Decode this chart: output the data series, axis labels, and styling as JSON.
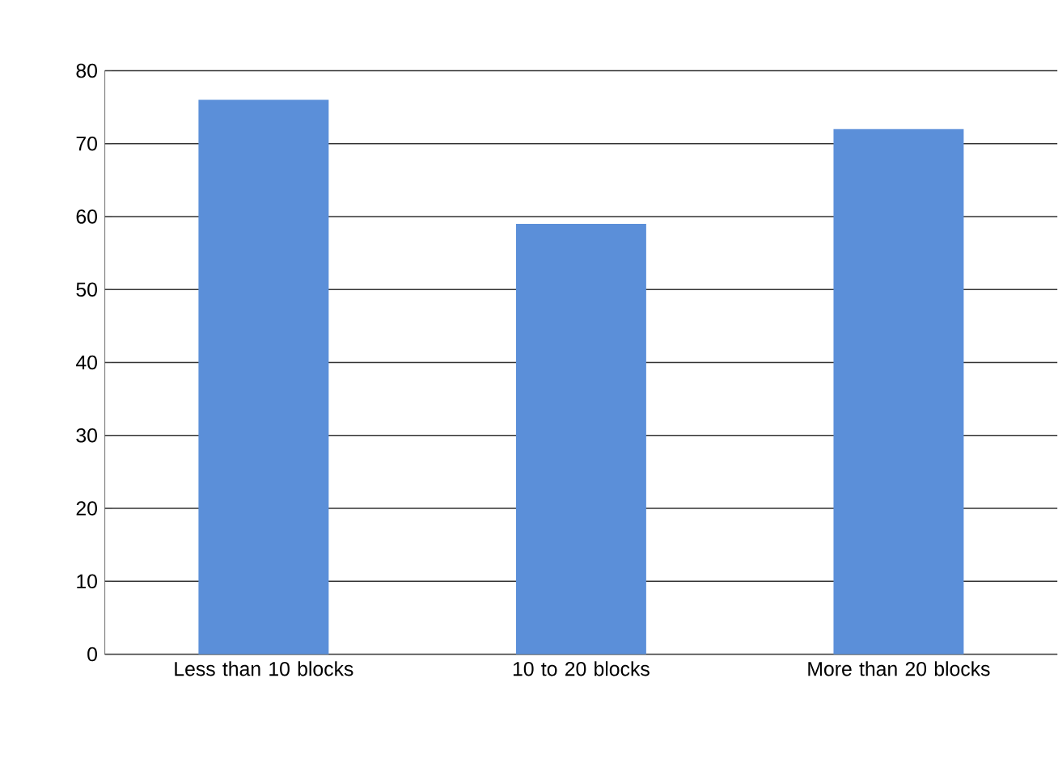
{
  "chart_data": {
    "type": "bar",
    "categories": [
      "Less than 10 blocks",
      "10 to 20 blocks",
      "More than 20 blocks"
    ],
    "values": [
      76,
      59,
      72
    ],
    "color": "#5b8fd9",
    "ylim": [
      0,
      80
    ],
    "yticks": [
      0,
      10,
      20,
      30,
      40,
      50,
      60,
      70,
      80
    ],
    "grid": "y"
  }
}
